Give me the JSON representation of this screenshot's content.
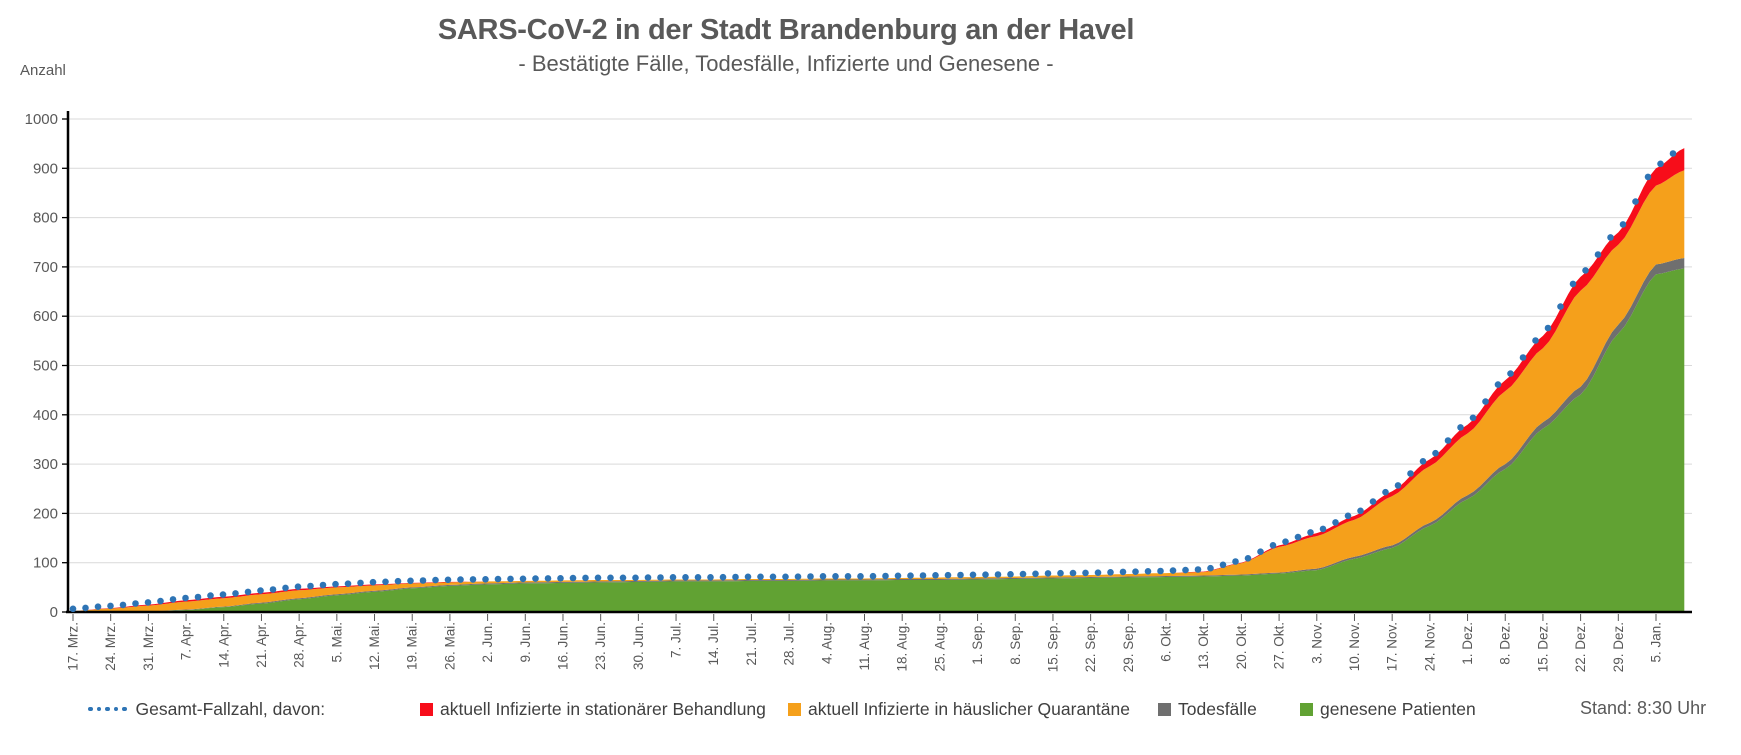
{
  "header": {
    "title": "SARS-CoV-2 in der Stadt Brandenburg an der Havel",
    "subtitle": "- Bestätigte Fälle, Todesfälle, Infizierte und Genesene -"
  },
  "y_axis_label": "Anzahl",
  "status_note": "Stand: 8:30 Uhr",
  "legend": [
    {
      "key": "total",
      "label": "Gesamt-Fallzahl, davon:",
      "marker": "dotted-line",
      "color": "#2e74b5"
    },
    {
      "key": "hospital",
      "label": "aktuell Infizierte in stationärer Behandlung",
      "marker": "square",
      "color": "#f70d1a"
    },
    {
      "key": "quarantine",
      "label": "aktuell Infizierte in häuslicher Quarantäne",
      "marker": "square",
      "color": "#f5a01b"
    },
    {
      "key": "deaths",
      "label": "Todesfälle",
      "marker": "square",
      "color": "#6f6f6f"
    },
    {
      "key": "recovered",
      "label": "genesene Patienten",
      "marker": "square",
      "color": "#61a233"
    }
  ],
  "chart_data": {
    "type": "area",
    "stacked": true,
    "title": "SARS-CoV-2 in der Stadt Brandenburg an der Havel",
    "subtitle": "- Bestätigte Fälle, Todesfälle, Infizierte und Genesene -",
    "xlabel": "",
    "ylabel": "Anzahl",
    "ylim": [
      0,
      1000
    ],
    "y_ticks": [
      0,
      100,
      200,
      300,
      400,
      500,
      600,
      700,
      800,
      900,
      1000
    ],
    "grid": true,
    "legend_position": "bottom",
    "categories": [
      "17. Mrz.",
      "24. Mrz.",
      "31. Mrz.",
      "7. Apr.",
      "14. Apr.",
      "21. Apr.",
      "28. Apr.",
      "5. Mai.",
      "12. Mai.",
      "19. Mai.",
      "26. Mai.",
      "2. Jun.",
      "9. Jun.",
      "16. Jun.",
      "23. Jun.",
      "30. Jun.",
      "7. Jul.",
      "14. Jul.",
      "21. Jul.",
      "28. Jul.",
      "4. Aug.",
      "11. Aug.",
      "18. Aug.",
      "25. Aug.",
      "1. Sep.",
      "8. Sep.",
      "15. Sep.",
      "22. Sep.",
      "29. Sep.",
      "6. Okt.",
      "13. Okt.",
      "20. Okt.",
      "27. Okt.",
      "3. Nov.",
      "10. Nov.",
      "17. Nov.",
      "24. Nov.",
      "1. Dez.",
      "8. Dez.",
      "15. Dez.",
      "22. Dez.",
      "29. Dez.",
      "5. Jan."
    ],
    "series": [
      {
        "key": "recovered",
        "name": "genesene Patienten",
        "color": "#61a233",
        "values": [
          0,
          0,
          1,
          4,
          10,
          17,
          26,
          34,
          41,
          48,
          53,
          56,
          58,
          59,
          60,
          61,
          62,
          62,
          63,
          63,
          64,
          64,
          65,
          65,
          66,
          67,
          68,
          69,
          70,
          71,
          72,
          74,
          78,
          85,
          108,
          130,
          175,
          229,
          290,
          372,
          441,
          565,
          685
        ]
      },
      {
        "key": "deaths",
        "name": "Todesfälle",
        "color": "#6f6f6f",
        "values": [
          0,
          0,
          0,
          1,
          1,
          2,
          2,
          2,
          2,
          2,
          2,
          2,
          2,
          2,
          2,
          2,
          2,
          2,
          2,
          2,
          2,
          2,
          2,
          2,
          2,
          2,
          2,
          2,
          2,
          2,
          2,
          2,
          2,
          3,
          4,
          5,
          6,
          8,
          10,
          13,
          16,
          18,
          20
        ]
      },
      {
        "key": "quarantine",
        "name": "aktuell Infizierte in häuslicher Quarantäne",
        "color": "#f5a01b",
        "values": [
          2,
          7,
          12,
          16,
          17,
          17,
          16,
          14,
          11,
          8,
          5,
          4,
          3,
          3,
          3,
          2,
          2,
          2,
          2,
          2,
          2,
          2,
          2,
          3,
          3,
          3,
          4,
          4,
          5,
          6,
          7,
          23,
          52,
          66,
          75,
          100,
          115,
          125,
          148,
          150,
          195,
          162,
          160
        ]
      },
      {
        "key": "hospital",
        "name": "aktuell Infizierte in stationärer Behandlung",
        "color": "#f70d1a",
        "values": [
          0,
          1,
          2,
          3,
          3,
          3,
          3,
          2,
          2,
          1,
          1,
          0,
          0,
          0,
          0,
          0,
          0,
          0,
          0,
          0,
          0,
          0,
          0,
          0,
          0,
          0,
          0,
          0,
          0,
          0,
          1,
          1,
          3,
          6,
          8,
          10,
          14,
          18,
          22,
          25,
          28,
          25,
          35
        ]
      }
    ],
    "overlay_line": {
      "name": "Gesamt-Fallzahl, davon:",
      "style": "dotted",
      "color": "#2e74b5",
      "definition": "sum of all stacked series"
    },
    "extra_end_point": {
      "offset_weeks": 0.75,
      "values": {
        "recovered": 697,
        "deaths": 21,
        "quarantine": 178,
        "hospital": 45
      },
      "total": 941
    },
    "colors": {
      "grid": "#d9d9d9",
      "axis": "#000000",
      "tick_text": "#595959"
    }
  }
}
